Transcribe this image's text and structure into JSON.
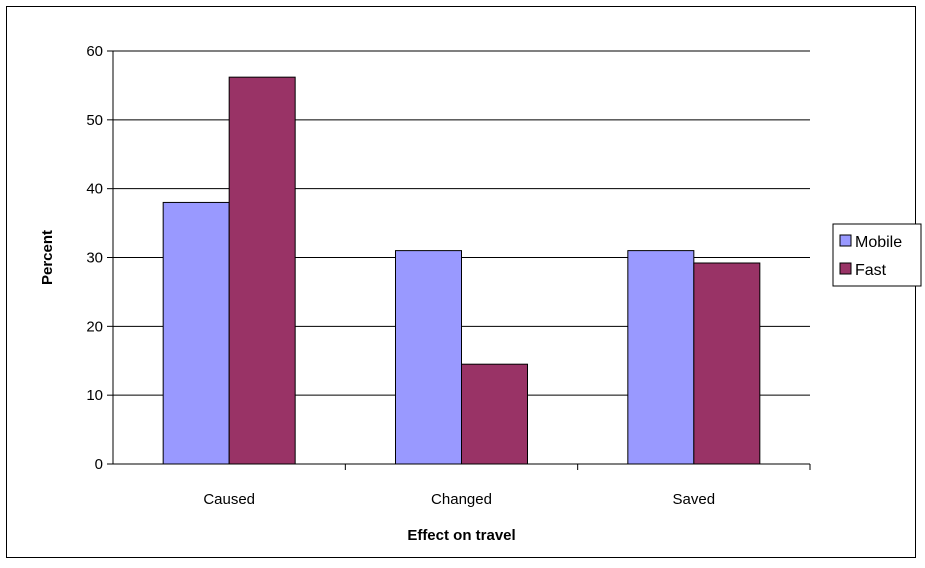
{
  "chart_data": {
    "type": "bar",
    "xlabel": "Effect on travel",
    "ylabel": "Percent",
    "categories": [
      "Caused",
      "Changed",
      "Saved"
    ],
    "series": [
      {
        "name": "Mobile",
        "color": "#9999ff",
        "values": [
          38,
          31,
          31
        ]
      },
      {
        "name": "Fast",
        "color": "#993366",
        "values": [
          56.2,
          14.5,
          29.2
        ]
      }
    ],
    "ylim": [
      0,
      60
    ],
    "yticks": [
      0,
      10,
      20,
      30,
      40,
      50,
      60
    ],
    "grid": true,
    "legend_position": "right"
  }
}
